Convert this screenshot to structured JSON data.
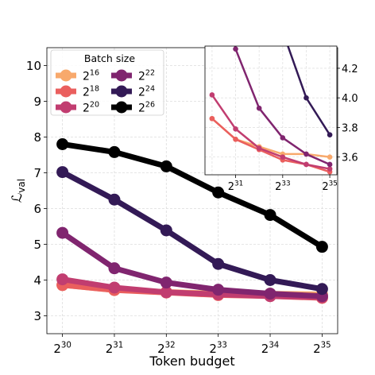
{
  "chart_data": [
    {
      "type": "line",
      "xlabel": "Token budget",
      "ylabel_base": "ℒ",
      "ylabel_sub": "val",
      "x": [
        30,
        31,
        32,
        33,
        34,
        35
      ],
      "x_tick_base": "2",
      "x_tick_exponents": [
        "30",
        "31",
        "32",
        "33",
        "34",
        "35"
      ],
      "y_ticks": [
        "3",
        "4",
        "5",
        "6",
        "7",
        "8",
        "9",
        "10"
      ],
      "y_tick_values": [
        3,
        4,
        5,
        6,
        7,
        8,
        9,
        10
      ],
      "xlim": [
        29.7,
        35.3
      ],
      "ylim": [
        2.5,
        10.5
      ],
      "grid": true,
      "legend_title": "Batch size",
      "legend_position": "top-left",
      "series": [
        {
          "name": "2^16",
          "base": "2",
          "exp": "16",
          "color": "#f8a96c",
          "values": [
            3.86,
            3.72,
            3.67,
            3.62,
            3.62,
            3.6
          ]
        },
        {
          "name": "2^18",
          "base": "2",
          "exp": "18",
          "color": "#ea5f5e",
          "values": [
            3.86,
            3.72,
            3.65,
            3.58,
            3.55,
            3.5
          ]
        },
        {
          "name": "2^20",
          "base": "2",
          "exp": "20",
          "color": "#c13d70",
          "values": [
            4.02,
            3.79,
            3.66,
            3.6,
            3.55,
            3.52
          ]
        },
        {
          "name": "2^22",
          "base": "2",
          "exp": "22",
          "color": "#80256f",
          "values": [
            5.32,
            4.33,
            3.93,
            3.73,
            3.62,
            3.55
          ]
        },
        {
          "name": "2^24",
          "base": "2",
          "exp": "24",
          "color": "#331a56",
          "values": [
            7.02,
            6.25,
            5.39,
            4.45,
            4.0,
            3.75
          ]
        },
        {
          "name": "2^26",
          "base": "2",
          "exp": "26",
          "color": "#000000",
          "values": [
            7.8,
            7.58,
            7.18,
            6.45,
            5.82,
            4.93
          ]
        }
      ]
    },
    {
      "type": "line",
      "inset": true,
      "x_tick_base": "2",
      "x_tick_values": [
        31,
        33,
        35
      ],
      "x_tick_exponents": [
        "31",
        "33",
        "35"
      ],
      "y_ticks": [
        "3.6",
        "3.8",
        "4.0",
        "4.2"
      ],
      "y_tick_values": [
        3.6,
        3.8,
        4.0,
        4.2
      ],
      "xlim": [
        29.7,
        35.3
      ],
      "ylim": [
        3.48,
        4.35
      ],
      "grid": true,
      "y_axis_side": "right"
    }
  ]
}
